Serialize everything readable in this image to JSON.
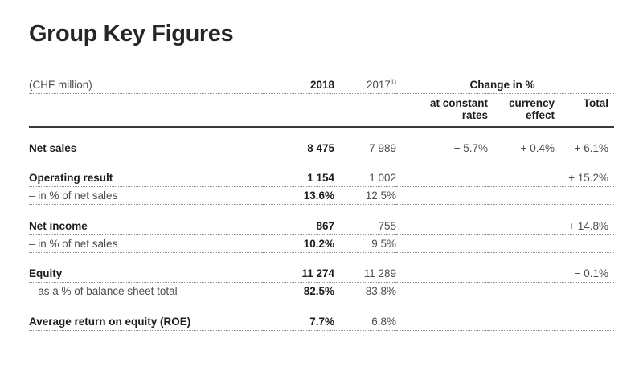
{
  "page": {
    "title": "Group Key Figures"
  },
  "table": {
    "unit_label": "(CHF million)",
    "columns": {
      "y2018": "2018",
      "y2017": "2017",
      "y2017_footnote": "1)",
      "change_group": "Change in %",
      "constant_line1": "at constant",
      "constant_line2": "rates",
      "currency_line1": "currency",
      "currency_line2": "effect",
      "total": "Total"
    },
    "rows": [
      {
        "label": "Net sales",
        "v2018": "8 475",
        "v2017": "7 989",
        "constant": "+ 5.7%",
        "currency": "+ 0.4%",
        "total": "+ 6.1%"
      },
      {
        "label": "Operating result",
        "v2018": "1 154",
        "v2017": "1 002",
        "constant": "",
        "currency": "",
        "total": "+ 15.2%"
      },
      {
        "label": "– in % of net sales",
        "v2018": "13.6%",
        "v2017": "12.5%",
        "constant": "",
        "currency": "",
        "total": ""
      },
      {
        "label": "Net income",
        "v2018": "867",
        "v2017": "755",
        "constant": "",
        "currency": "",
        "total": "+ 14.8%"
      },
      {
        "label": "– in % of net sales",
        "v2018": "10.2%",
        "v2017": "9.5%",
        "constant": "",
        "currency": "",
        "total": ""
      },
      {
        "label": "Equity",
        "v2018": "11 274",
        "v2017": "11 289",
        "constant": "",
        "currency": "",
        "total": "− 0.1%"
      },
      {
        "label": "– as a % of balance sheet total",
        "v2018": "82.5%",
        "v2017": "83.8%",
        "constant": "",
        "currency": "",
        "total": ""
      },
      {
        "label": "Average return on equity (ROE)",
        "v2018": "7.7%",
        "v2017": "6.8%",
        "constant": "",
        "currency": "",
        "total": ""
      }
    ],
    "colors": {
      "text_primary": "#1d1d1b",
      "text_secondary": "#4d4d4b",
      "rule_solid": "#3a3a38",
      "rule_dotted": "#8f8f8d"
    }
  }
}
